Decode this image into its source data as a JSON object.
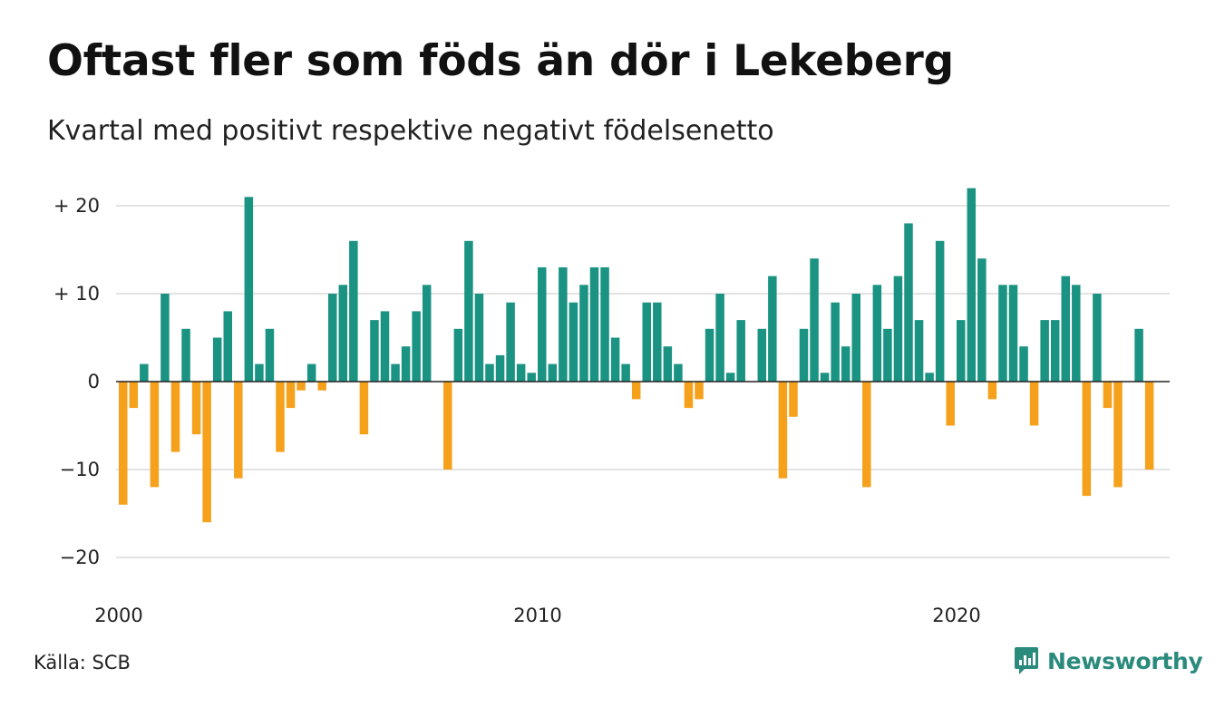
{
  "title": "Oftast fler som föds än dör i Lekeberg",
  "subtitle": "Kvartal med positivt respektive negativt födelsenetto",
  "source": "Källa: SCB",
  "brand": "Newsworthy",
  "colors": {
    "positive": "#1a9383",
    "negative": "#f5a11b",
    "grid": "#e3e3e3",
    "baseline": "#222222",
    "brand": "#2a8a7c"
  },
  "chart_data": {
    "type": "bar",
    "title": "Oftast fler som föds än dör i Lekeberg",
    "subtitle": "Kvartal med positivt respektive negativt födelsenetto",
    "x_start_year": 2000,
    "x_ticks": [
      2000,
      2010,
      2020
    ],
    "x_tick_labels": [
      "2000",
      "2010",
      "2020"
    ],
    "y_ticks": [
      20,
      10,
      0,
      -10,
      -20
    ],
    "y_tick_labels": [
      "+ 20",
      "+ 10",
      "0",
      "−10",
      "−20"
    ],
    "ylim": [
      -22.5,
      22
    ],
    "grid": true,
    "values": [
      -14,
      -3,
      2,
      -12,
      10,
      -8,
      6,
      -6,
      -16,
      5,
      8,
      -11,
      21,
      2,
      6,
      -8,
      -3,
      -1,
      2,
      -1,
      10,
      11,
      16,
      -6,
      7,
      8,
      2,
      4,
      8,
      11,
      0,
      -10,
      6,
      16,
      10,
      2,
      3,
      9,
      2,
      1,
      13,
      2,
      13,
      9,
      11,
      13,
      13,
      5,
      2,
      -2,
      9,
      9,
      4,
      2,
      -3,
      -2,
      6,
      10,
      1,
      7,
      0,
      6,
      12,
      -11,
      -4,
      6,
      14,
      1,
      9,
      4,
      10,
      -12,
      11,
      6,
      12,
      18,
      7,
      1,
      16,
      -5,
      7,
      22,
      14,
      -2,
      11,
      11,
      4,
      -5,
      7,
      7,
      12,
      11,
      -13,
      10,
      -3,
      -12,
      0,
      6,
      -10
    ]
  }
}
